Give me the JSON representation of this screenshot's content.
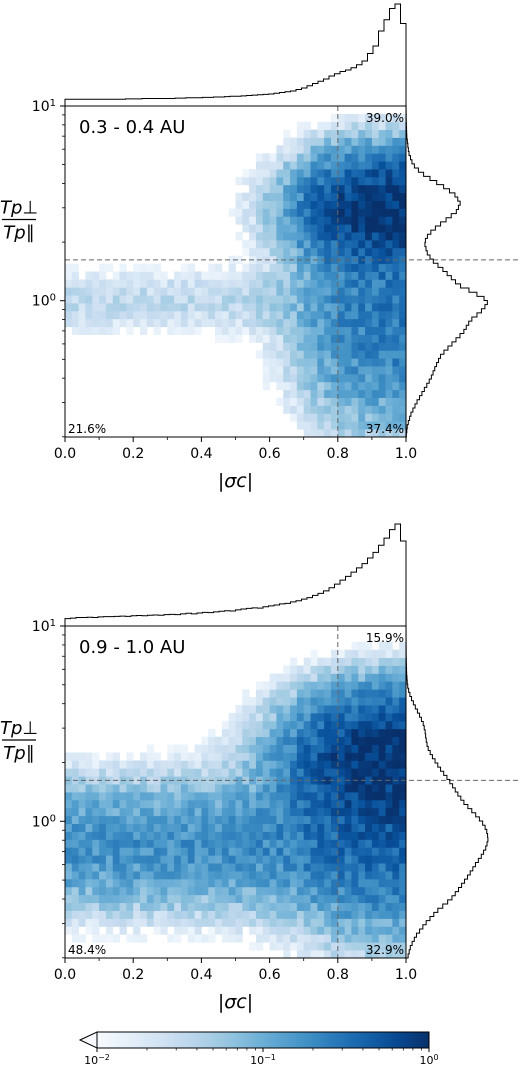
{
  "chart_data": [
    {
      "type": "heatmap",
      "panel_label": "0.3 - 0.4 AU",
      "xlabel": "|σc|",
      "ylabel_num": "Tp⊥",
      "ylabel_den": "Tp∥",
      "xlim": [
        0.0,
        1.0
      ],
      "ylim_log10": [
        -0.7,
        1.0
      ],
      "y_scale": "log",
      "xticks": [
        "0.0",
        "0.2",
        "0.4",
        "0.6",
        "0.8",
        "1.0"
      ],
      "yticks": [
        {
          "label": "10",
          "exp": "1",
          "value": 10
        },
        {
          "label": "10",
          "exp": "0",
          "value": 1
        }
      ],
      "threshold_x": 0.8,
      "threshold_y": 1.62,
      "quadrant_percentages": {
        "top_right": "39.0%",
        "bottom_left": "21.6%",
        "bottom_right": "37.4%"
      },
      "marginal_x_counts": [
        0.9,
        0.9,
        0.9,
        0.9,
        0.9,
        0.9,
        0.9,
        0.9,
        0.9,
        0.9,
        0.9,
        0.95,
        0.95,
        0.95,
        1,
        1,
        1,
        1,
        1,
        1,
        1.05,
        1.05,
        1.1,
        1.1,
        1.1,
        1.15,
        1.15,
        1.2,
        1.2,
        1.25,
        1.3,
        1.3,
        1.35,
        1.4,
        1.45,
        1.5,
        1.55,
        1.6,
        1.7,
        1.8,
        1.9,
        2,
        2.2,
        2.4,
        2.7,
        3,
        3.3,
        3.6,
        4,
        4.3,
        4.6,
        4.8,
        5.1,
        5.5,
        6,
        7,
        8,
        10,
        11.5,
        13,
        13.6,
        11
      ],
      "marginal_y_curve": [
        [
          -0.7,
          0.05
        ],
        [
          -0.64,
          0.4
        ],
        [
          -0.58,
          1.5
        ],
        [
          -0.52,
          3.2
        ],
        [
          -0.46,
          5.2
        ],
        [
          -0.4,
          7.2
        ],
        [
          -0.34,
          8.6
        ],
        [
          -0.28,
          10.2
        ],
        [
          -0.22,
          13.5
        ],
        [
          -0.16,
          16.8
        ],
        [
          -0.1,
          18.8
        ],
        [
          -0.06,
          21.6
        ],
        [
          -0.02,
          23.5
        ],
        [
          0.0,
          23.9
        ],
        [
          0.04,
          20
        ],
        [
          0.08,
          15.4
        ],
        [
          0.12,
          13.1
        ],
        [
          0.16,
          10.8
        ],
        [
          0.2,
          8.1
        ],
        [
          0.24,
          6.3
        ],
        [
          0.28,
          5.6
        ],
        [
          0.3,
          5.4
        ],
        [
          0.34,
          6.5
        ],
        [
          0.38,
          9
        ],
        [
          0.42,
          12
        ],
        [
          0.46,
          14.8
        ],
        [
          0.5,
          15.8
        ],
        [
          0.54,
          14.5
        ],
        [
          0.58,
          11.5
        ],
        [
          0.62,
          7.7
        ],
        [
          0.66,
          4.2
        ],
        [
          0.7,
          2
        ],
        [
          0.76,
          0.8
        ],
        [
          0.84,
          0.25
        ],
        [
          0.92,
          0.08
        ],
        [
          1.0,
          0.02
        ]
      ],
      "density_params": {
        "low_density": 0.036,
        "low_mu": 0.0,
        "low_sigma": 0.11,
        "high_mu": 0.47,
        "high_sigma": 0.17,
        "high_x0": 0.76,
        "high_scale": 0.06,
        "bottom_spread": 0.28
      }
    },
    {
      "type": "heatmap",
      "panel_label": "0.9 - 1.0 AU",
      "xlabel": "|σc|",
      "ylabel_num": "Tp⊥",
      "ylabel_den": "Tp∥",
      "xlim": [
        0.0,
        1.0
      ],
      "ylim_log10": [
        -0.7,
        1.0
      ],
      "y_scale": "log",
      "xticks": [
        "0.0",
        "0.2",
        "0.4",
        "0.6",
        "0.8",
        "1.0"
      ],
      "yticks": [
        {
          "label": "10",
          "exp": "1",
          "value": 10
        },
        {
          "label": "10",
          "exp": "0",
          "value": 1
        }
      ],
      "threshold_x": 0.8,
      "threshold_y": 1.62,
      "quadrant_percentages": {
        "top_right": "15.9%",
        "bottom_left": "48.4%",
        "bottom_right": "32.9%"
      },
      "marginal_x_counts": [
        2.6,
        2.8,
        3,
        3,
        3.1,
        3,
        3.2,
        3.3,
        3.3,
        3.4,
        3.5,
        3.4,
        3.6,
        3.7,
        3.6,
        3.8,
        3.9,
        3.8,
        4,
        4.1,
        4,
        4.3,
        4.5,
        4.3,
        4.6,
        4.8,
        4.7,
        5,
        5.2,
        5.4,
        5.3,
        5.7,
        6,
        6.2,
        6.4,
        6.3,
        6.8,
        7.1,
        7.4,
        7.8,
        8,
        8.5,
        8.9,
        9.5,
        10,
        10.8,
        11.5,
        12.4,
        13.5,
        14.8,
        16.2,
        17.5,
        19,
        20.5,
        22,
        24,
        26,
        28.5,
        31,
        34,
        36,
        30
      ],
      "marginal_y_curve": [
        [
          -0.7,
          0.5
        ],
        [
          -0.64,
          1.5
        ],
        [
          -0.58,
          3.5
        ],
        [
          -0.52,
          6.5
        ],
        [
          -0.46,
          10
        ],
        [
          -0.4,
          14.5
        ],
        [
          -0.34,
          17.5
        ],
        [
          -0.28,
          20.2
        ],
        [
          -0.22,
          22.6
        ],
        [
          -0.18,
          24.4
        ],
        [
          -0.14,
          25.8
        ],
        [
          -0.1,
          26.6
        ],
        [
          -0.06,
          26.4
        ],
        [
          -0.02,
          25.4
        ],
        [
          0.02,
          23.4
        ],
        [
          0.06,
          21
        ],
        [
          0.1,
          18.6
        ],
        [
          0.14,
          16.8
        ],
        [
          0.18,
          15.2
        ],
        [
          0.22,
          13.5
        ],
        [
          0.26,
          11.5
        ],
        [
          0.3,
          9.8
        ],
        [
          0.34,
          8.2
        ],
        [
          0.38,
          7
        ],
        [
          0.42,
          6.5
        ],
        [
          0.46,
          6.2
        ],
        [
          0.5,
          5.6
        ],
        [
          0.54,
          4.5
        ],
        [
          0.58,
          3.2
        ],
        [
          0.62,
          2
        ],
        [
          0.66,
          1
        ],
        [
          0.7,
          0.45
        ],
        [
          0.76,
          0.2
        ],
        [
          0.84,
          0.08
        ],
        [
          0.92,
          0.03
        ],
        [
          1.0,
          0.01
        ]
      ],
      "density_params": {
        "low_density": 0.19,
        "low_mu": -0.12,
        "low_sigma": 0.2,
        "high_mu": 0.32,
        "high_sigma": 0.2,
        "high_x0": 0.75,
        "high_scale": 0.07,
        "bottom_spread": 0.22
      }
    }
  ],
  "colorbar": {
    "min_tick": {
      "base": "10",
      "exp": "−2"
    },
    "mid_tick": {
      "base": "10",
      "exp": "−1"
    },
    "max_tick": {
      "base": "10",
      "exp": "0"
    },
    "range_log10": [
      -2,
      0
    ],
    "extend": "min",
    "color_low": "#f7fbff",
    "color_high": "#08306b"
  }
}
